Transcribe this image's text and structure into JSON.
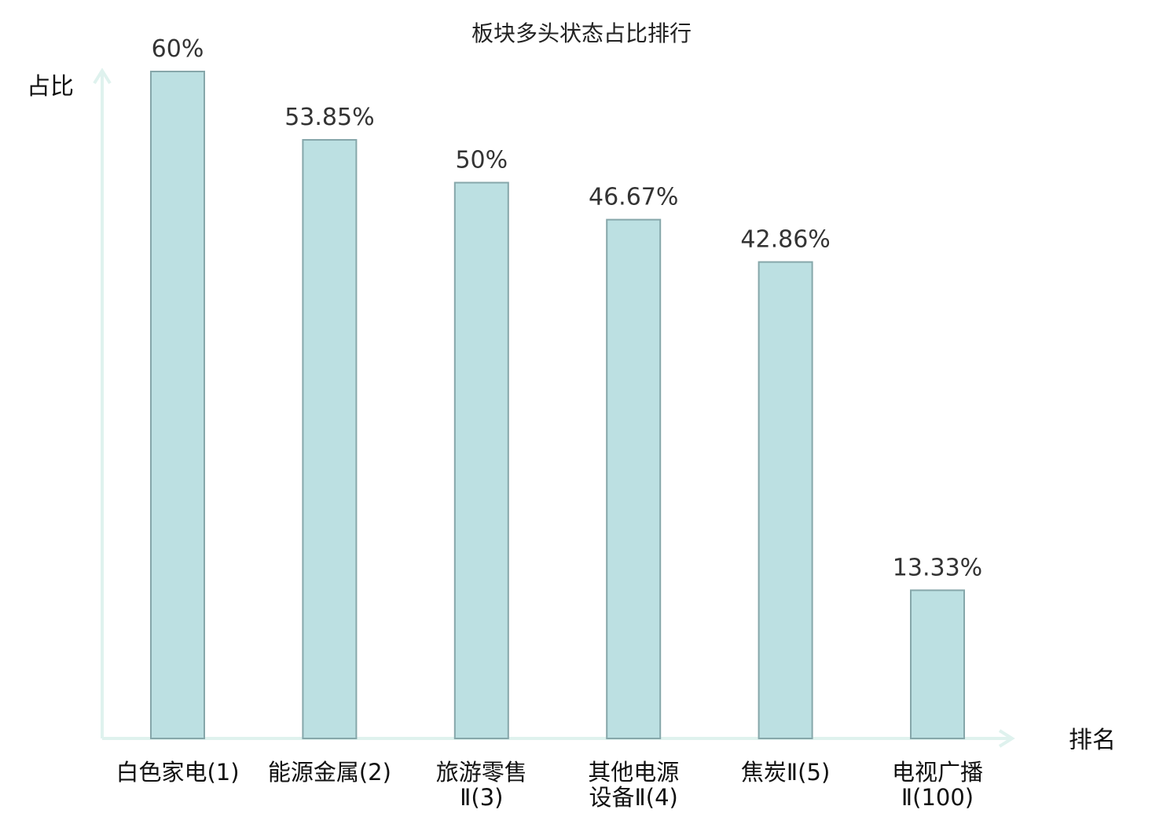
{
  "chart_data": {
    "type": "bar",
    "title": "板块多头状态占比排行",
    "ylabel": "占比",
    "xlabel": "排名",
    "categories": [
      [
        "白色家电(1)"
      ],
      [
        "能源金属(2)"
      ],
      [
        "旅游零售",
        "Ⅱ(3)"
      ],
      [
        "其他电源",
        "设备Ⅱ(4)"
      ],
      [
        "焦炭Ⅱ(5)"
      ],
      [
        "电视广播",
        "Ⅱ(100)"
      ]
    ],
    "values": [
      60,
      53.85,
      50,
      46.67,
      42.86,
      13.33
    ],
    "value_labels": [
      "60%",
      "53.85%",
      "50%",
      "46.67%",
      "42.86%",
      "13.33%"
    ],
    "highlight_index": 5,
    "ylim": [
      0,
      60
    ],
    "grid": false,
    "legend": "none"
  },
  "colors": {
    "bar_fill": "#bce0e2",
    "bar_stroke": "#86a7aa",
    "axis": "#dff2ee",
    "highlight": "#e8141c"
  }
}
